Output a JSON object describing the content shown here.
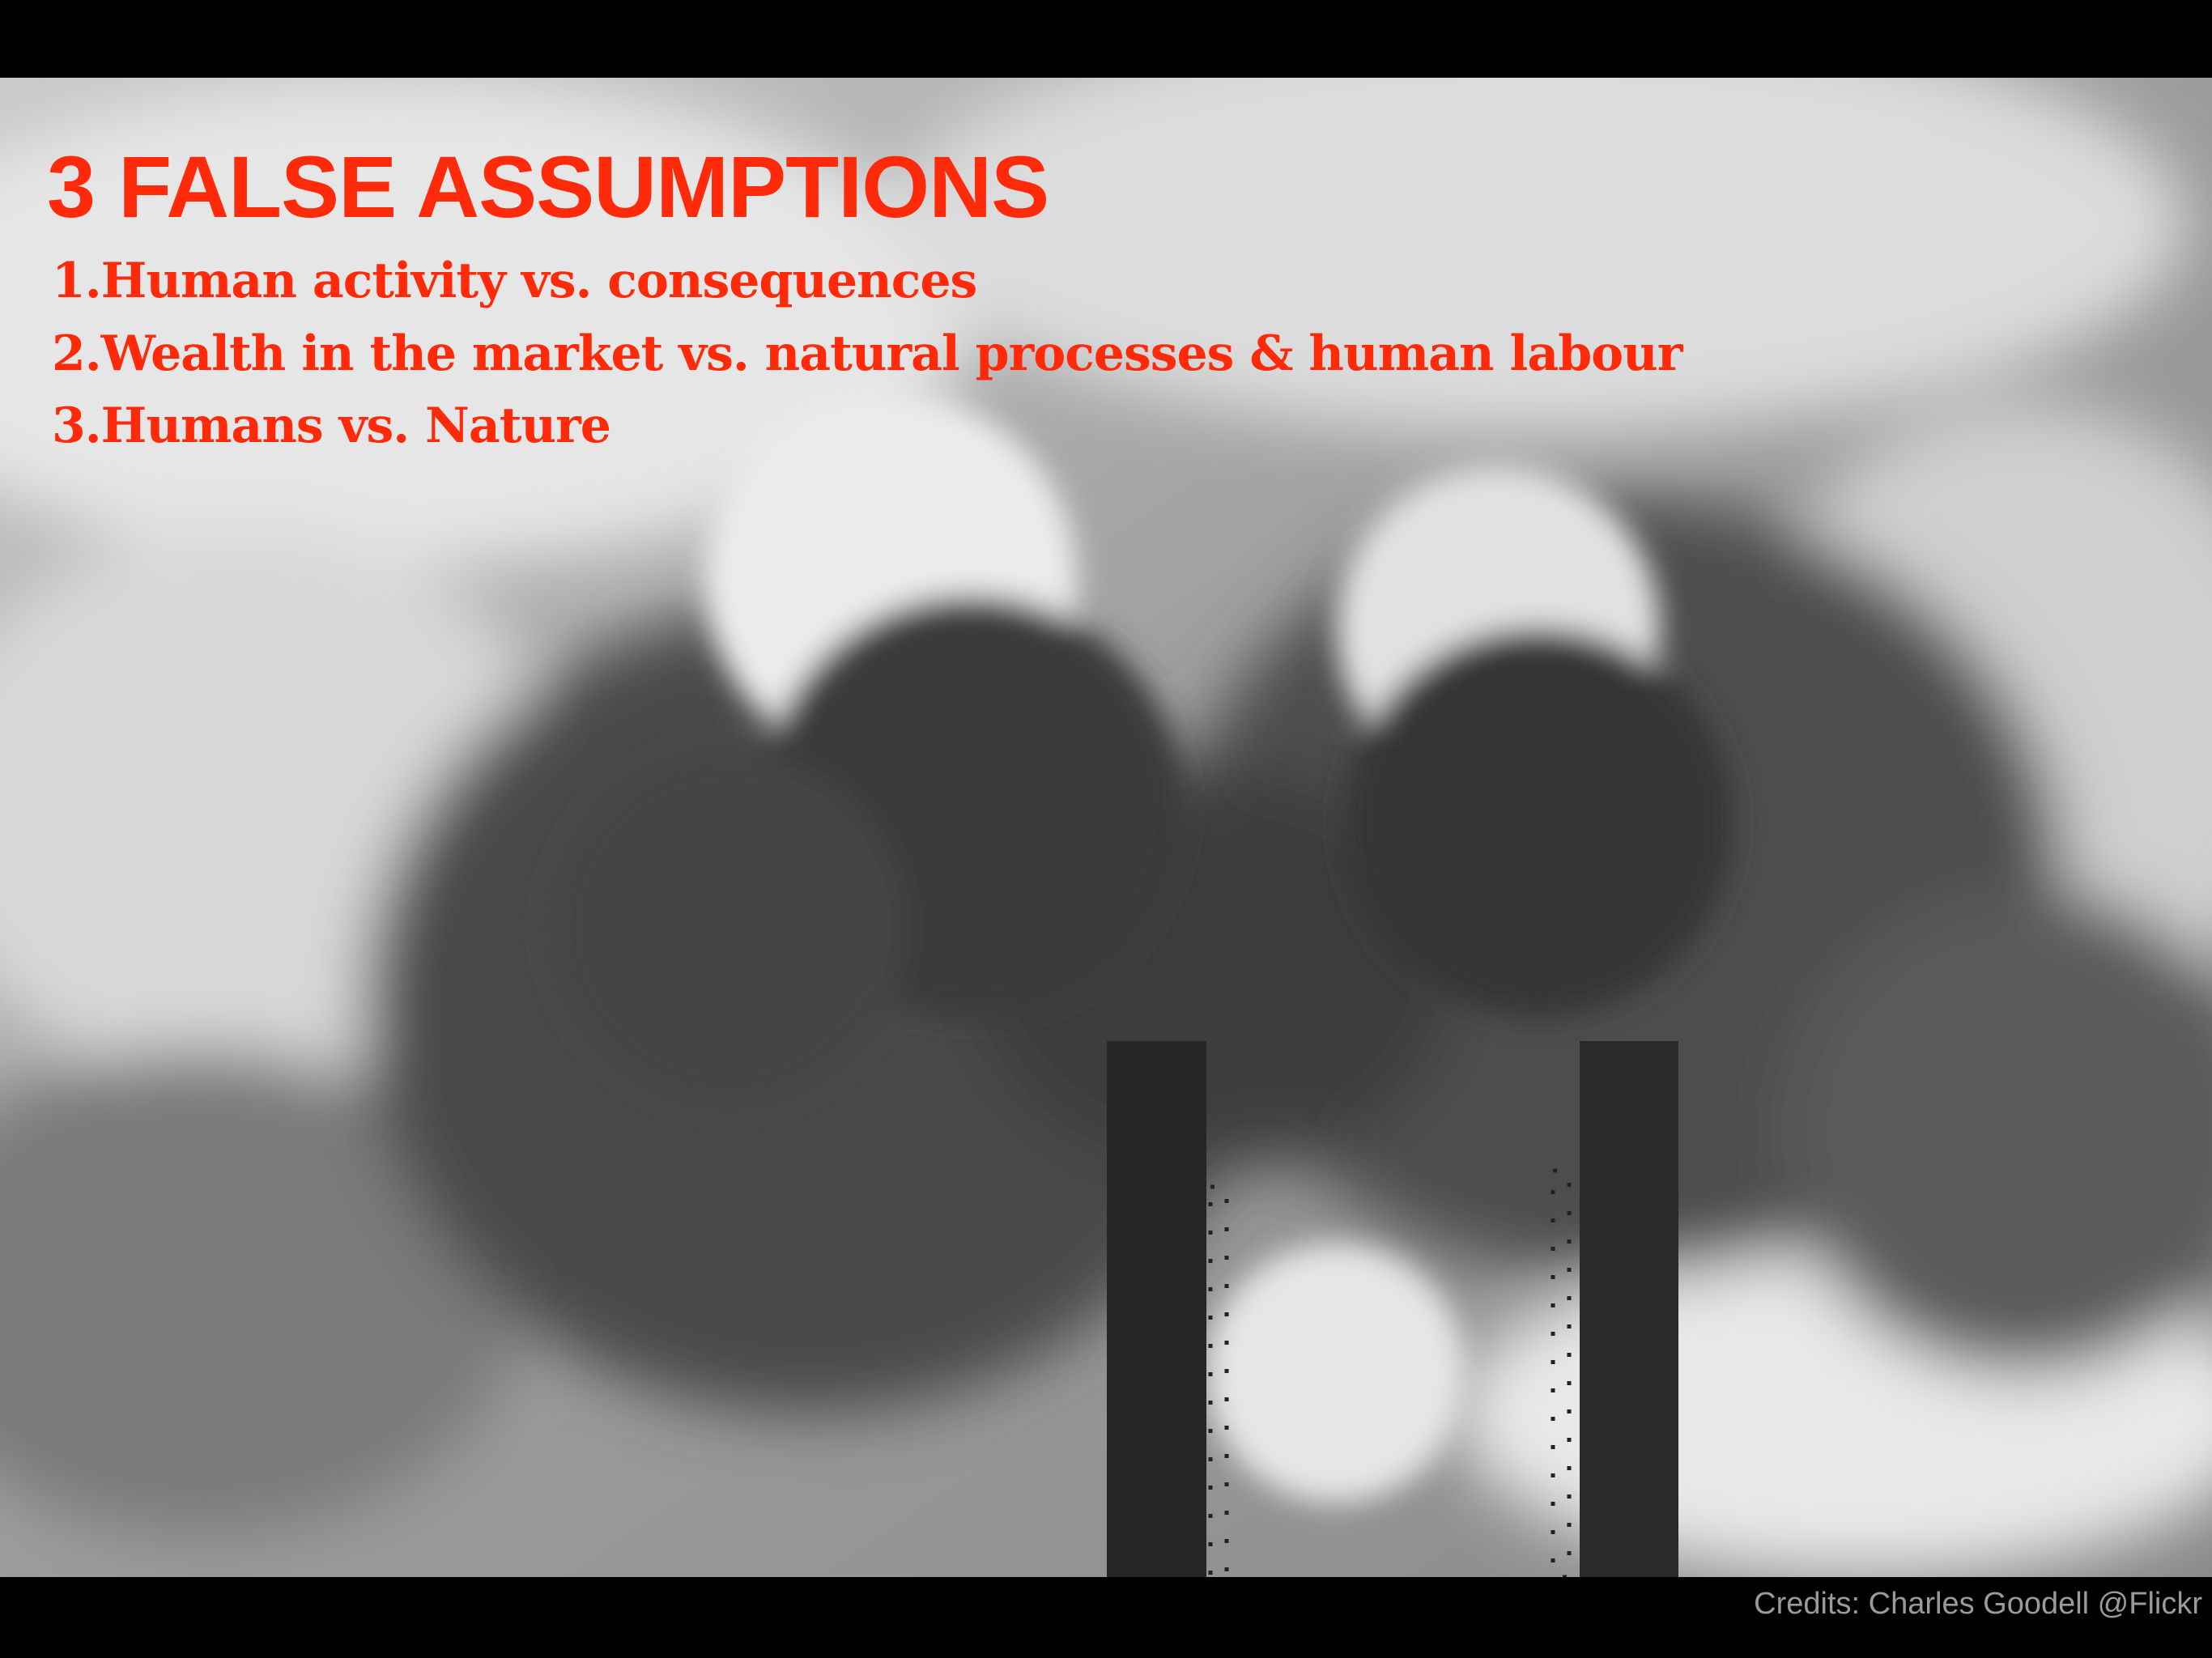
{
  "slide": {
    "title": "3 FALSE ASSUMPTIONS",
    "items": [
      "1.Human activity vs. consequences",
      "2.Wealth in the market vs. natural processes & human labour",
      "3.Humans vs. Nature"
    ],
    "credits": "Credits: Charles Goodell @Flickr"
  }
}
